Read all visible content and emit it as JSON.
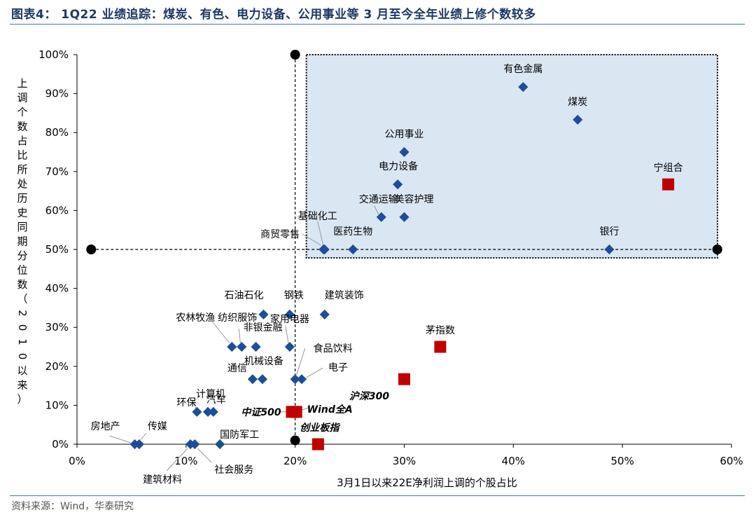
{
  "title": "图表4：  1Q22 业绩追踪：煤炭、有色、电力设备、公用事业等 3 月至今全年业绩上修个数较多",
  "source": "资料来源：Wind，华泰研究",
  "chart_data": {
    "type": "scatter",
    "title": "",
    "xlabel": "3月1日以来22E净利润上调的个股占比",
    "ylabel": "上调个数占比所处历史同期分位数（2010以来）",
    "xlim": [
      0,
      0.6
    ],
    "ylim": [
      0,
      1.0
    ],
    "xticks": [
      "0%",
      "10%",
      "20%",
      "30%",
      "40%",
      "50%",
      "60%"
    ],
    "yticks": [
      "0%",
      "10%",
      "20%",
      "30%",
      "40%",
      "50%",
      "60%",
      "70%",
      "80%",
      "90%",
      "100%"
    ],
    "grid": false,
    "reference_lines": {
      "x": 0.2,
      "y": 0.5
    },
    "highlight_region": {
      "x": [
        0.2,
        0.6
      ],
      "y": [
        0.5,
        1.0
      ]
    },
    "colors": {
      "industry": "#1f4e99",
      "index": "#c00000",
      "reference": "#000000",
      "region_fill": "#dae6f2"
    },
    "series": [
      {
        "kind": "industry",
        "points": [
          {
            "name": "有色金属",
            "x": 0.409,
            "y": 0.917
          },
          {
            "name": "煤炭",
            "x": 0.459,
            "y": 0.833
          },
          {
            "name": "公用事业",
            "x": 0.3,
            "y": 0.75
          },
          {
            "name": "电力设备",
            "x": 0.294,
            "y": 0.667
          },
          {
            "name": "交通运输",
            "x": 0.279,
            "y": 0.583
          },
          {
            "name": "美容护理",
            "x": 0.3,
            "y": 0.583
          },
          {
            "name": "基础化工",
            "x": 0.227,
            "y": 0.5
          },
          {
            "name": "商贸零售",
            "x": 0.226,
            "y": 0.5
          },
          {
            "name": "医药生物",
            "x": 0.253,
            "y": 0.5
          },
          {
            "name": "银行",
            "x": 0.488,
            "y": 0.5
          },
          {
            "name": "石油石化",
            "x": 0.171,
            "y": 0.333
          },
          {
            "name": "钢铁",
            "x": 0.195,
            "y": 0.333
          },
          {
            "name": "建筑装饰",
            "x": 0.227,
            "y": 0.333
          },
          {
            "name": "农林牧渔",
            "x": 0.142,
            "y": 0.25
          },
          {
            "name": "纺织服饰",
            "x": 0.151,
            "y": 0.25
          },
          {
            "name": "非银金融",
            "x": 0.164,
            "y": 0.25
          },
          {
            "name": "家用电器",
            "x": 0.195,
            "y": 0.25
          },
          {
            "name": "通信",
            "x": 0.161,
            "y": 0.167
          },
          {
            "name": "机械设备",
            "x": 0.17,
            "y": 0.167
          },
          {
            "name": "食品饮料",
            "x": 0.2,
            "y": 0.167
          },
          {
            "name": "电子",
            "x": 0.206,
            "y": 0.167
          },
          {
            "name": "计算机",
            "x": 0.12,
            "y": 0.083
          },
          {
            "name": "环保",
            "x": 0.11,
            "y": 0.083
          },
          {
            "name": "汽车",
            "x": 0.125,
            "y": 0.083
          },
          {
            "name": "房地产",
            "x": 0.053,
            "y": 0.0
          },
          {
            "name": "传媒",
            "x": 0.057,
            "y": 0.0
          },
          {
            "name": "建筑材料",
            "x": 0.104,
            "y": 0.0
          },
          {
            "name": "社会服务",
            "x": 0.108,
            "y": 0.0
          },
          {
            "name": "国防军工",
            "x": 0.131,
            "y": 0.0
          }
        ]
      },
      {
        "kind": "index",
        "points": [
          {
            "name": "宁组合",
            "x": 0.542,
            "y": 0.667
          },
          {
            "name": "茅指数",
            "x": 0.333,
            "y": 0.25
          },
          {
            "name": "沪深300",
            "x": 0.3,
            "y": 0.167
          },
          {
            "name": "中证500",
            "x": 0.197,
            "y": 0.083
          },
          {
            "name": "Wind全A",
            "x": 0.201,
            "y": 0.083
          },
          {
            "name": "创业板指",
            "x": 0.221,
            "y": 0.0
          }
        ]
      },
      {
        "kind": "reference",
        "points": [
          {
            "x": 0.2,
            "y": 1.0
          },
          {
            "x": 0.2,
            "y": 0.01
          },
          {
            "x": 0.013,
            "y": 0.5
          },
          {
            "x": 0.587,
            "y": 0.5
          }
        ]
      }
    ]
  }
}
